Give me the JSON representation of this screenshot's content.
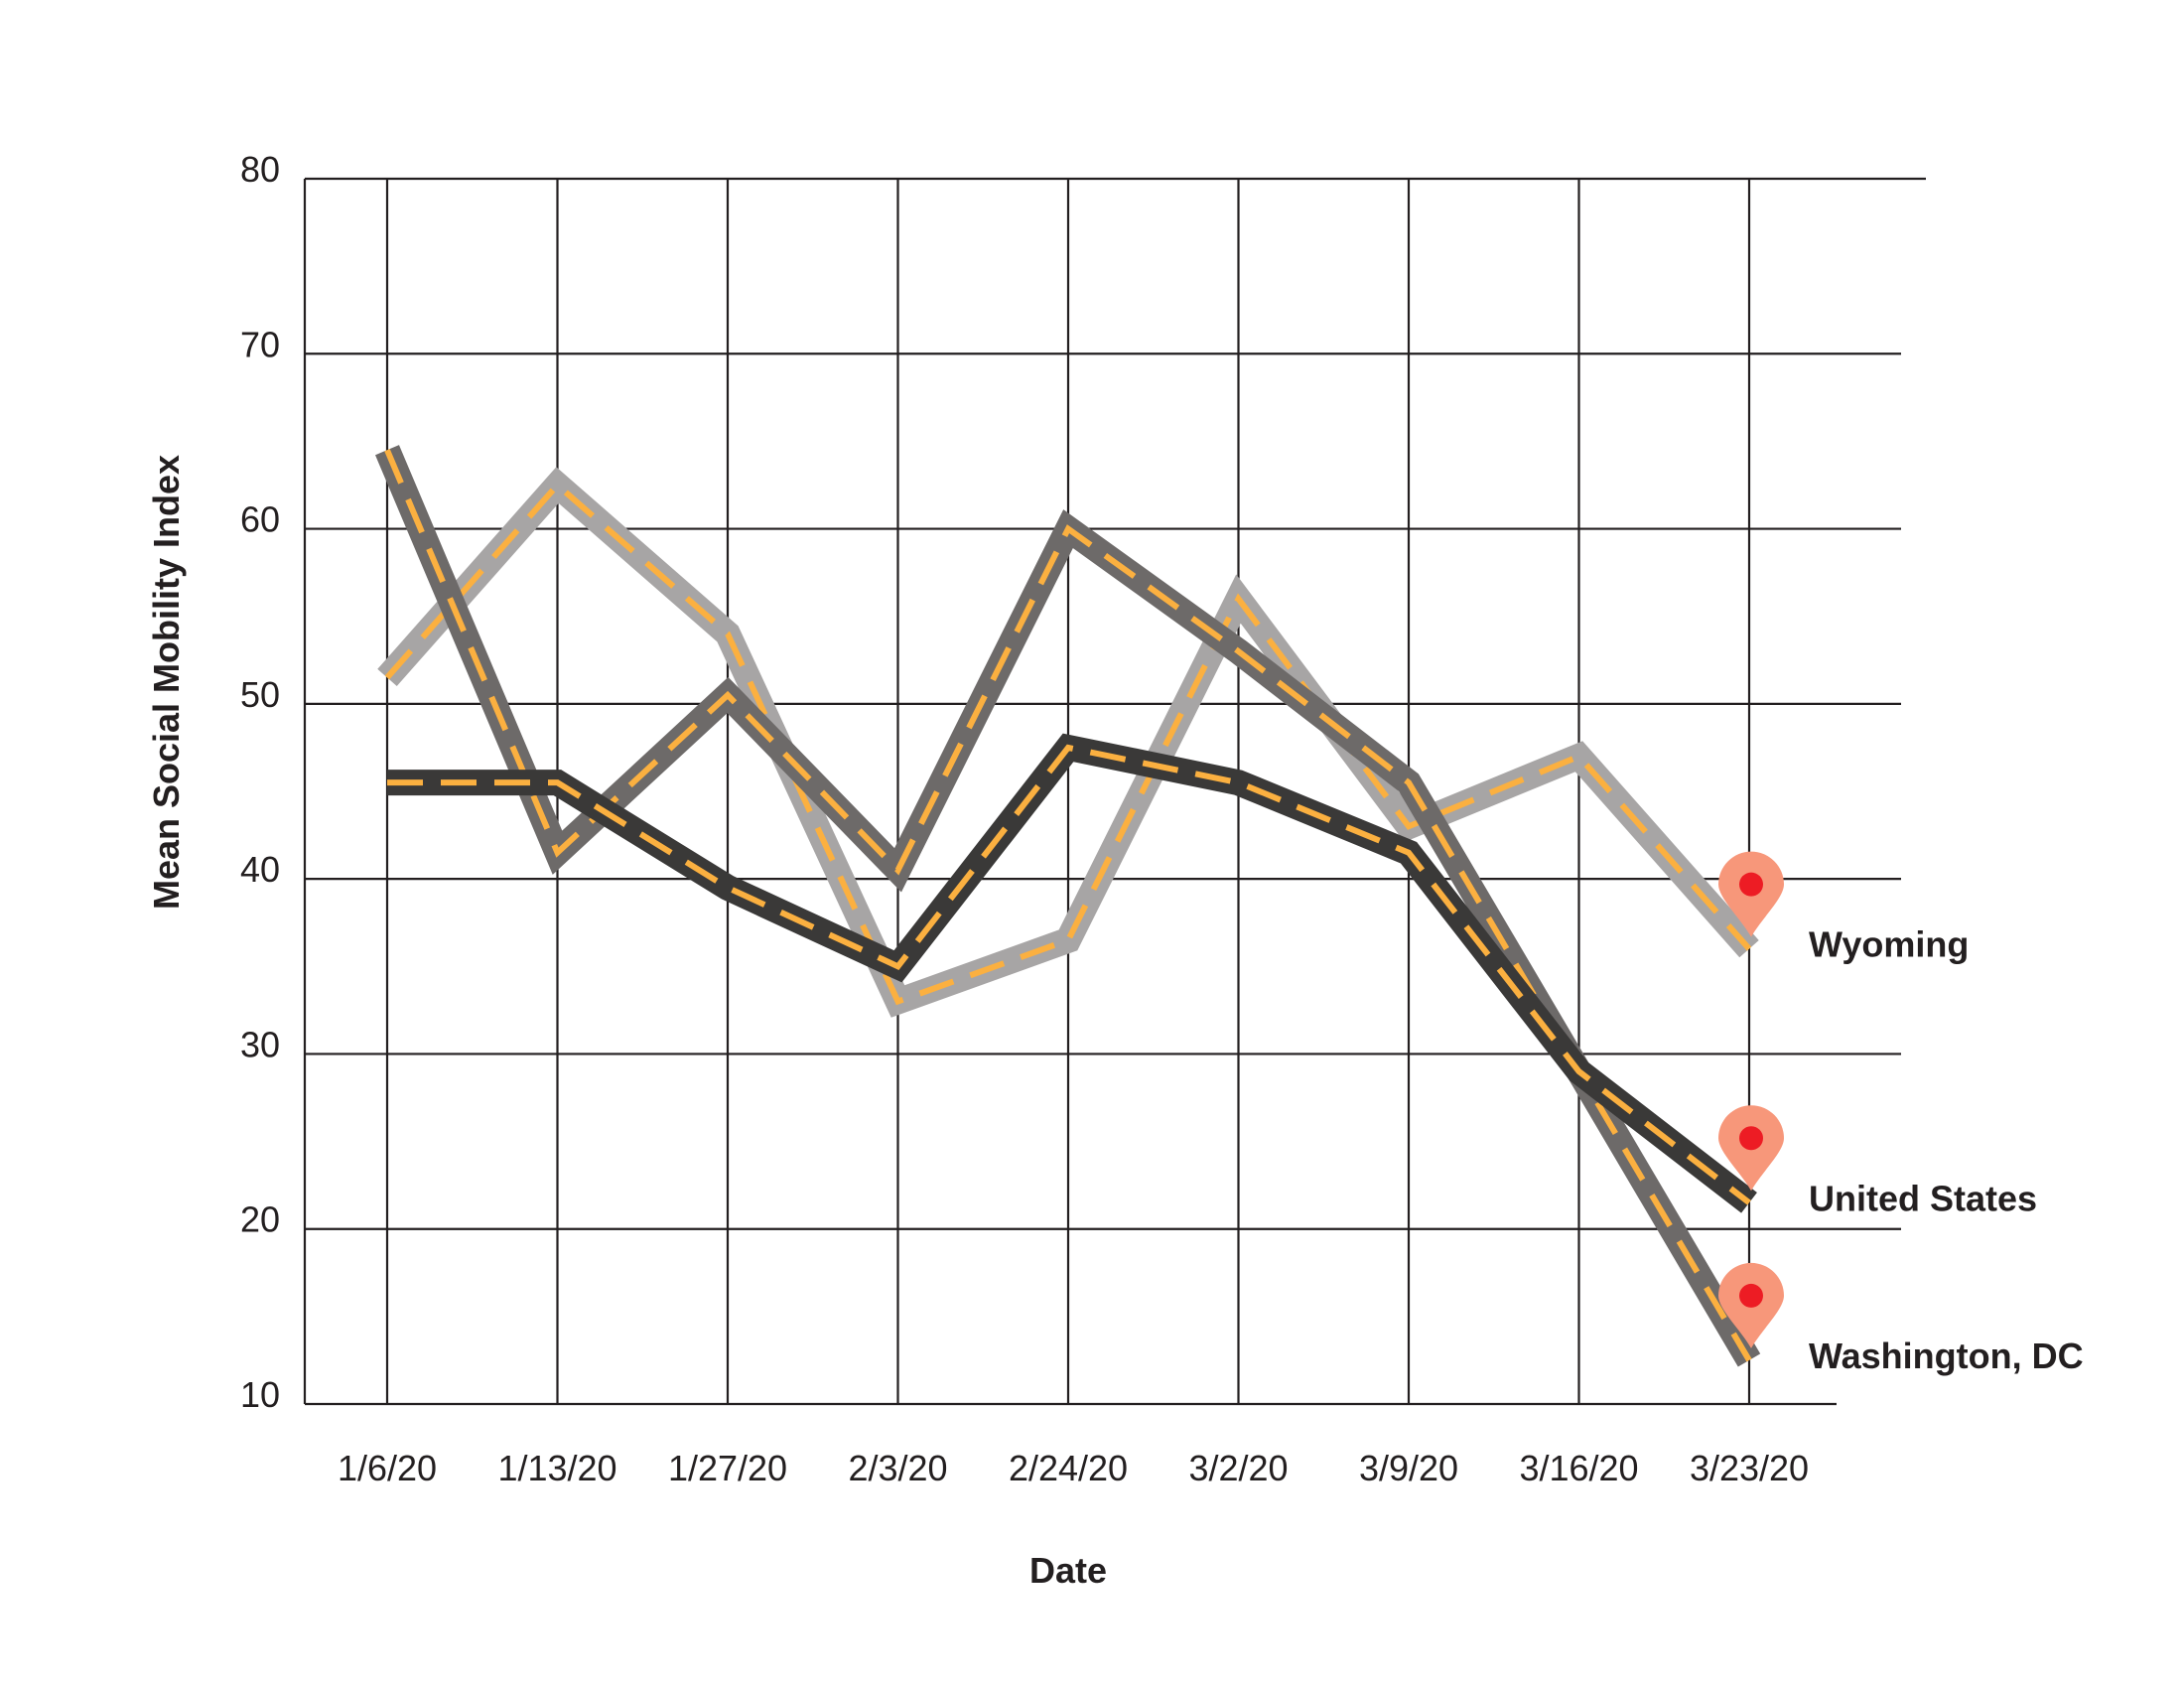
{
  "chart_data": {
    "type": "line",
    "xlabel": "Date",
    "ylabel": "Mean Social Mobility Index",
    "categories": [
      "1/6/20",
      "1/13/20",
      "1/27/20",
      "2/3/20",
      "2/24/20",
      "3/2/20",
      "3/9/20",
      "3/16/20",
      "3/23/20"
    ],
    "ylim": [
      10,
      80
    ],
    "yticks": [
      "10",
      "20",
      "30",
      "40",
      "50",
      "60",
      "70",
      "80"
    ],
    "grid": true,
    "series": [
      {
        "name": "Wyoming",
        "values": [
          51.5,
          62.5,
          54,
          33,
          36.5,
          56,
          43,
          47,
          36
        ],
        "color": "#a7a5a5"
      },
      {
        "name": "Washington, DC",
        "values": [
          64.5,
          41.5,
          50.5,
          40.5,
          60,
          53,
          45.5,
          29,
          12.5
        ],
        "color": "#6d6a69"
      },
      {
        "name": "United States",
        "values": [
          45.5,
          45.5,
          39.5,
          35,
          47.5,
          45.5,
          41.5,
          29,
          21.5
        ],
        "color": "#3a3938"
      }
    ],
    "dash_color": "#fbb040",
    "marker_color": "#f7977a",
    "marker_dot_color": "#ed1c24"
  }
}
